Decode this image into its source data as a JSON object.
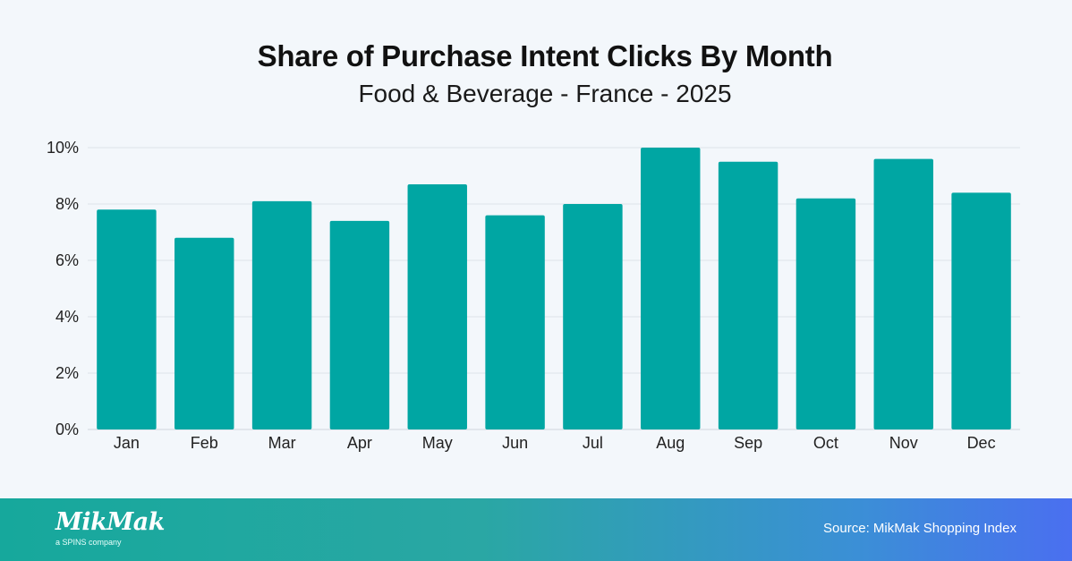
{
  "chart_data": {
    "type": "bar",
    "title": "Share of Purchase Intent Clicks By Month",
    "subtitle": "Food & Beverage - France - 2025",
    "categories": [
      "Jan",
      "Feb",
      "Mar",
      "Apr",
      "May",
      "Jun",
      "Jul",
      "Aug",
      "Sep",
      "Oct",
      "Nov",
      "Dec"
    ],
    "values": [
      7.8,
      6.8,
      8.1,
      7.4,
      8.7,
      7.6,
      8.0,
      10.0,
      9.5,
      8.2,
      9.6,
      8.4
    ],
    "ylim": [
      0,
      10
    ],
    "yticks": [
      0,
      2,
      4,
      6,
      8,
      10
    ],
    "ytick_labels": [
      "0%",
      "2%",
      "4%",
      "6%",
      "8%",
      "10%"
    ],
    "xlabel": "",
    "ylabel": "",
    "grid": true,
    "bar_color": "#00a6a3"
  },
  "footer": {
    "logo_text": "MikMak",
    "logo_subtext": "a SPINS company",
    "source": "Source: MikMak Shopping Index"
  }
}
